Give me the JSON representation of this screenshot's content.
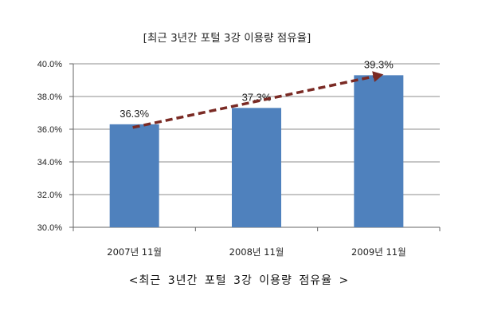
{
  "chart_data": {
    "type": "bar",
    "title": "[최근 3년간 포털 3강 이용량 점유율]",
    "categories": [
      "2007년 11월",
      "2008년 11월",
      "2009년 11월"
    ],
    "values": [
      36.3,
      37.3,
      39.3
    ],
    "data_labels": [
      "36.3%",
      "37.3%",
      "39.3%"
    ],
    "ylim": [
      30.0,
      40.0
    ],
    "yticks": [
      30.0,
      32.0,
      34.0,
      36.0,
      38.0,
      40.0
    ],
    "ytick_labels": [
      "30.0%",
      "32.0%",
      "34.0%",
      "36.0%",
      "38.0%",
      "40.0%"
    ],
    "xlabel": "",
    "ylabel": "",
    "grid": true,
    "trend_arrow": true,
    "colors": {
      "bar": "#4f81bd",
      "arrow": "#7a2a24",
      "grid": "#8c8c8c"
    }
  },
  "caption": "<최근 3년간 포털 3강 이용량 점유율 >"
}
